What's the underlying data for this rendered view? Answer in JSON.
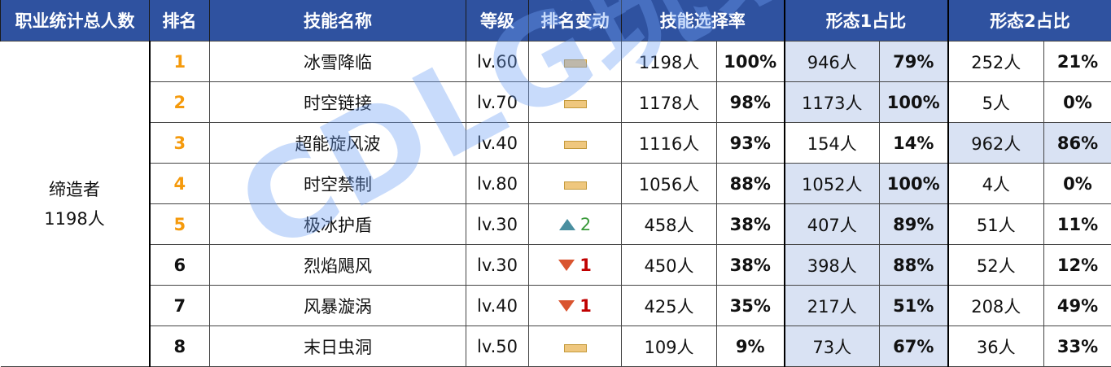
{
  "headers": [
    "职业统计总人数",
    "排名",
    "技能名称",
    "等级",
    "排名变动",
    "技能选择率",
    "形态1占比",
    "形态2占比"
  ],
  "occupation": {
    "name": "缔造者",
    "total": "1198人"
  },
  "colors": {
    "header_bg": "#2f52a0",
    "top_rank": "#f59a0c",
    "highlight": "#d9e2f3",
    "up": "#4a8fa0",
    "down": "#d9542f"
  },
  "watermark": "CDLG玩家社区",
  "rows": [
    {
      "rank": "1",
      "skill": "冰雪降临",
      "level": "lv.60",
      "change": "flat",
      "change_val": "",
      "sel": "1198人",
      "sel_pct": "100%",
      "f1": "946人",
      "f1_pct": "79%",
      "f2": "252人",
      "f2_pct": "21%",
      "hl": "f1"
    },
    {
      "rank": "2",
      "skill": "时空链接",
      "level": "lv.70",
      "change": "flat",
      "change_val": "",
      "sel": "1178人",
      "sel_pct": "98%",
      "f1": "1173人",
      "f1_pct": "100%",
      "f2": "5人",
      "f2_pct": "0%",
      "hl": "f1"
    },
    {
      "rank": "3",
      "skill": "超能旋风波",
      "level": "lv.40",
      "change": "flat",
      "change_val": "",
      "sel": "1116人",
      "sel_pct": "93%",
      "f1": "154人",
      "f1_pct": "14%",
      "f2": "962人",
      "f2_pct": "86%",
      "hl": "f2"
    },
    {
      "rank": "4",
      "skill": "时空禁制",
      "level": "lv.80",
      "change": "flat",
      "change_val": "",
      "sel": "1056人",
      "sel_pct": "88%",
      "f1": "1052人",
      "f1_pct": "100%",
      "f2": "4人",
      "f2_pct": "0%",
      "hl": "f1"
    },
    {
      "rank": "5",
      "skill": "极冰护盾",
      "level": "lv.30",
      "change": "up",
      "change_val": "2",
      "sel": "458人",
      "sel_pct": "38%",
      "f1": "407人",
      "f1_pct": "89%",
      "f2": "51人",
      "f2_pct": "11%",
      "hl": "f1"
    },
    {
      "rank": "6",
      "skill": "烈焰飓风",
      "level": "lv.30",
      "change": "down",
      "change_val": "1",
      "sel": "450人",
      "sel_pct": "38%",
      "f1": "398人",
      "f1_pct": "88%",
      "f2": "52人",
      "f2_pct": "12%",
      "hl": "f1"
    },
    {
      "rank": "7",
      "skill": "风暴漩涡",
      "level": "lv.40",
      "change": "down",
      "change_val": "1",
      "sel": "425人",
      "sel_pct": "35%",
      "f1": "217人",
      "f1_pct": "51%",
      "f2": "208人",
      "f2_pct": "49%",
      "hl": "f1"
    },
    {
      "rank": "8",
      "skill": "末日虫洞",
      "level": "lv.50",
      "change": "flat",
      "change_val": "",
      "sel": "109人",
      "sel_pct": "9%",
      "f1": "73人",
      "f1_pct": "67%",
      "f2": "36人",
      "f2_pct": "33%",
      "hl": "f1"
    }
  ]
}
